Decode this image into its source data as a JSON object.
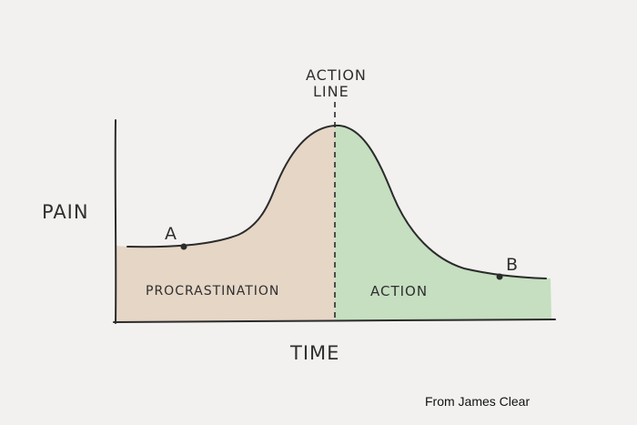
{
  "diagram": {
    "ylabel": "PAIN",
    "xlabel": "TIME",
    "action_line_label": [
      "ACTION",
      "LINE"
    ],
    "regions": {
      "left_label": "PROCRASTINATION",
      "right_label": "ACTION",
      "left_color": "#e5d6c6",
      "right_color": "#c5dfc0"
    },
    "points": {
      "a_label": "A",
      "b_label": "B"
    }
  },
  "credit": "From James Clear"
}
